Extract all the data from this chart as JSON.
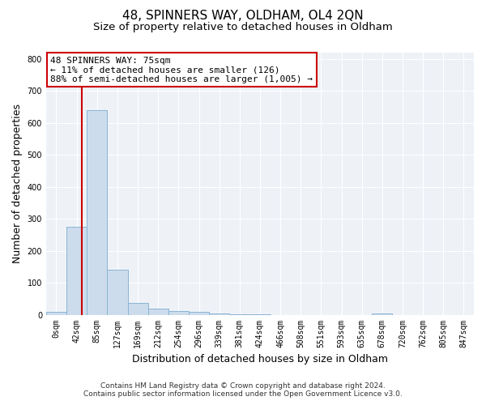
{
  "title": "48, SPINNERS WAY, OLDHAM, OL4 2QN",
  "subtitle": "Size of property relative to detached houses in Oldham",
  "xlabel": "Distribution of detached houses by size in Oldham",
  "ylabel": "Number of detached properties",
  "bin_labels": [
    "0sqm",
    "42sqm",
    "85sqm",
    "127sqm",
    "169sqm",
    "212sqm",
    "254sqm",
    "296sqm",
    "339sqm",
    "381sqm",
    "424sqm",
    "466sqm",
    "508sqm",
    "551sqm",
    "593sqm",
    "635sqm",
    "678sqm",
    "720sqm",
    "762sqm",
    "805sqm",
    "847sqm"
  ],
  "bar_values": [
    8,
    275,
    640,
    140,
    38,
    20,
    12,
    8,
    5,
    2,
    2,
    0,
    0,
    0,
    0,
    0,
    5,
    0,
    0,
    0,
    0
  ],
  "bar_color": "#ccdcec",
  "bar_edgecolor": "#8ab4d4",
  "vline_color": "#cc0000",
  "vline_bin_index": 1.767,
  "annotation_line1": "48 SPINNERS WAY: 75sqm",
  "annotation_line2": "← 11% of detached houses are smaller (126)",
  "annotation_line3": "88% of semi-detached houses are larger (1,005) →",
  "annotation_box_edgecolor": "#cc0000",
  "annotation_box_facecolor": "#ffffff",
  "ylim": [
    0,
    820
  ],
  "yticks": [
    0,
    100,
    200,
    300,
    400,
    500,
    600,
    700,
    800
  ],
  "footer_line1": "Contains HM Land Registry data © Crown copyright and database right 2024.",
  "footer_line2": "Contains public sector information licensed under the Open Government Licence v3.0.",
  "background_color": "#ffffff",
  "plot_bg_color": "#eef2f7",
  "grid_color": "#ffffff",
  "title_fontsize": 11,
  "subtitle_fontsize": 9.5,
  "axis_label_fontsize": 9,
  "tick_fontsize": 7,
  "annotation_fontsize": 8,
  "footer_fontsize": 6.5
}
